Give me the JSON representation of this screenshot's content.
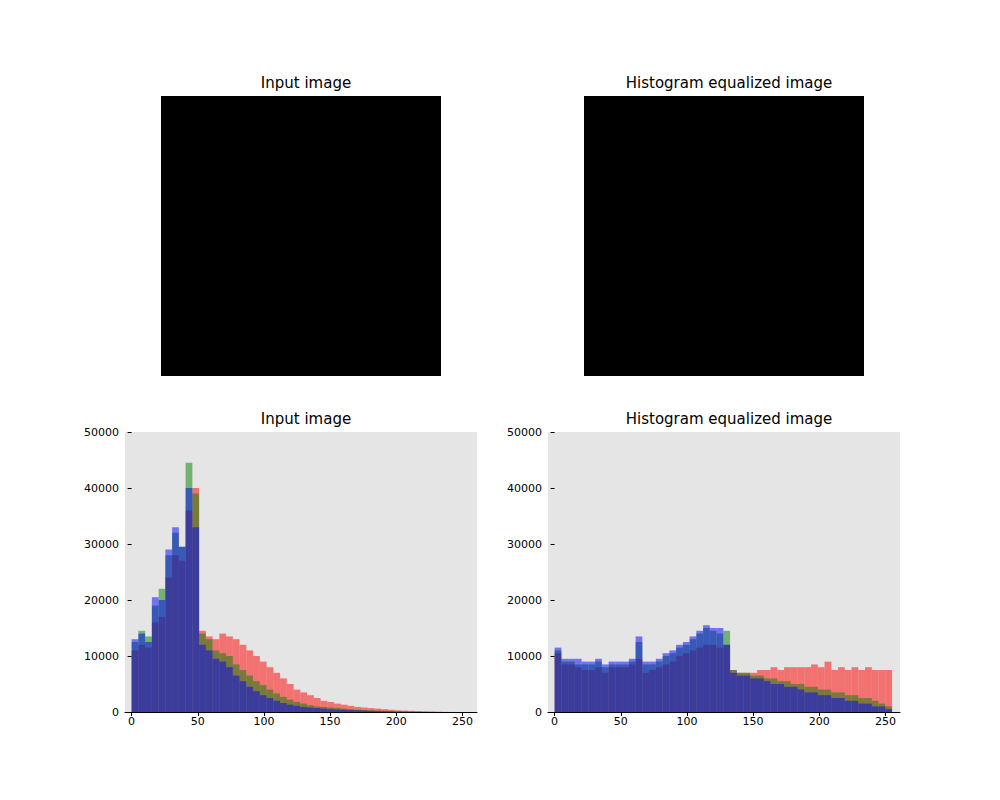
{
  "chart_data": [
    {
      "type": "image",
      "title": "Input image"
    },
    {
      "type": "image",
      "title": "Histogram equalized image"
    },
    {
      "type": "histogram",
      "title": "Input image",
      "bins": [
        0,
        5.1,
        10.2,
        15.3,
        20.4,
        25.5,
        30.6,
        35.7,
        40.8,
        45.9,
        51,
        56.1,
        61.2,
        66.3,
        71.4,
        76.5,
        81.6,
        86.7,
        91.8,
        96.9,
        102,
        107.1,
        112.2,
        117.3,
        122.4,
        127.5,
        132.6,
        137.7,
        142.8,
        147.9,
        153,
        158.1,
        163.2,
        168.3,
        173.4,
        178.5,
        183.6,
        188.7,
        193.8,
        198.9,
        204,
        209.1,
        214.2,
        219.3,
        224.4,
        229.5,
        234.6,
        239.7,
        244.8,
        249.9,
        255
      ],
      "series": [
        {
          "color": "red",
          "values": [
            11000,
            12000,
            11500,
            16000,
            17000,
            24000,
            28000,
            27000,
            36000,
            40000,
            14500,
            13500,
            13000,
            14000,
            13500,
            13000,
            12000,
            11000,
            10000,
            9000,
            8000,
            7000,
            6000,
            5000,
            4000,
            3500,
            3000,
            2500,
            2000,
            1800,
            1500,
            1300,
            1100,
            900,
            800,
            700,
            600,
            500,
            400,
            300,
            250,
            200,
            150,
            100,
            80,
            50,
            30,
            10,
            0,
            0
          ]
        },
        {
          "color": "green",
          "values": [
            12500,
            14500,
            13500,
            19000,
            22000,
            28000,
            32000,
            29500,
            44500,
            39000,
            14000,
            13000,
            11000,
            10500,
            10000,
            8500,
            7500,
            6500,
            5500,
            4800,
            4000,
            3300,
            2700,
            2200,
            1800,
            1500,
            1200,
            1000,
            900,
            800,
            700,
            600,
            500,
            400,
            350,
            300,
            250,
            200,
            150,
            100,
            80,
            60,
            40,
            30,
            20,
            10,
            5,
            0,
            0,
            0
          ]
        },
        {
          "color": "blue",
          "values": [
            13000,
            14000,
            12500,
            20500,
            20000,
            29000,
            33000,
            29500,
            40000,
            33000,
            12000,
            11000,
            9500,
            9000,
            8000,
            6500,
            5500,
            4500,
            3700,
            3000,
            2500,
            2000,
            1600,
            1300,
            1100,
            900,
            800,
            700,
            600,
            500,
            450,
            400,
            350,
            300,
            250,
            200,
            150,
            120,
            100,
            80,
            60,
            40,
            30,
            20,
            10,
            5,
            0,
            0,
            0,
            0
          ]
        }
      ],
      "xlim": [
        -5,
        261
      ],
      "xticks": [
        0,
        50,
        100,
        150,
        200,
        250
      ],
      "ylim": [
        0,
        50000
      ],
      "yticks": [
        0,
        10000,
        20000,
        30000,
        40000,
        50000
      ],
      "grid": false
    },
    {
      "type": "histogram",
      "title": "Histogram equalized image",
      "bins": [
        0,
        5.1,
        10.2,
        15.3,
        20.4,
        25.5,
        30.6,
        35.7,
        40.8,
        45.9,
        51,
        56.1,
        61.2,
        66.3,
        71.4,
        76.5,
        81.6,
        86.7,
        91.8,
        96.9,
        102,
        107.1,
        112.2,
        117.3,
        122.4,
        127.5,
        132.6,
        137.7,
        142.8,
        147.9,
        153,
        158.1,
        163.2,
        168.3,
        173.4,
        178.5,
        183.6,
        188.7,
        193.8,
        198.9,
        204,
        209.1,
        214.2,
        219.3,
        224.4,
        229.5,
        234.6,
        239.7,
        244.8,
        249.9,
        255
      ],
      "series": [
        {
          "color": "red",
          "values": [
            10500,
            8500,
            8500,
            8000,
            7500,
            7500,
            8000,
            7000,
            8000,
            8000,
            8000,
            8500,
            9500,
            7000,
            7500,
            8000,
            8500,
            9000,
            10000,
            10500,
            11000,
            11500,
            12000,
            12000,
            11500,
            12000,
            7500,
            7000,
            7000,
            7000,
            7500,
            7500,
            8000,
            7500,
            8000,
            8000,
            8000,
            8000,
            8500,
            8000,
            9000,
            7500,
            8000,
            7500,
            8000,
            7500,
            8000,
            7500,
            7500,
            7500
          ]
        },
        {
          "color": "green",
          "values": [
            11000,
            9000,
            9000,
            8500,
            8500,
            8500,
            9000,
            8000,
            8500,
            8500,
            8500,
            9000,
            12500,
            8500,
            8500,
            9000,
            10000,
            10500,
            11500,
            12000,
            13000,
            14000,
            15000,
            14500,
            14000,
            14500,
            7500,
            7000,
            7000,
            6500,
            6500,
            6000,
            6000,
            5500,
            5500,
            5000,
            5000,
            4500,
            4500,
            4000,
            4000,
            3500,
            3500,
            3000,
            3000,
            2500,
            2500,
            2000,
            1500,
            1000
          ]
        },
        {
          "color": "blue",
          "values": [
            11500,
            9500,
            9500,
            9500,
            9000,
            9000,
            9500,
            8500,
            9000,
            9000,
            9000,
            9500,
            13500,
            9000,
            9000,
            9500,
            10500,
            11000,
            12000,
            12500,
            13500,
            14500,
            15500,
            15000,
            15000,
            12000,
            7000,
            6500,
            6500,
            6000,
            6000,
            5500,
            5000,
            5000,
            4500,
            4500,
            4000,
            3500,
            3500,
            3000,
            3000,
            2500,
            2500,
            2000,
            2000,
            1500,
            1500,
            1000,
            1000,
            500
          ]
        }
      ],
      "xlim": [
        -5,
        261
      ],
      "xticks": [
        0,
        50,
        100,
        150,
        200,
        250
      ],
      "ylim": [
        0,
        50000
      ],
      "yticks": [
        0,
        10000,
        20000,
        30000,
        40000,
        50000
      ],
      "grid": false
    }
  ]
}
